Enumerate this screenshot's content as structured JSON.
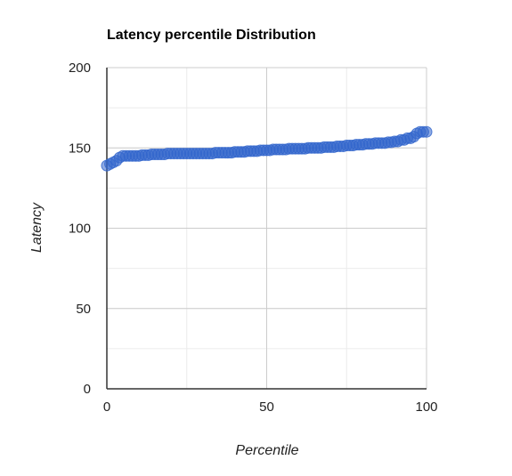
{
  "chart_data": {
    "type": "scatter",
    "title": "Latency percentile Distribution",
    "xlabel": "Percentile",
    "ylabel": "Latency",
    "xlim": [
      0,
      100
    ],
    "ylim": [
      0,
      200
    ],
    "x_ticks": [
      0,
      50,
      100
    ],
    "x_tick_labels": [
      "0",
      "50",
      "100"
    ],
    "y_ticks": [
      0,
      50,
      100,
      150,
      200
    ],
    "y_tick_labels": [
      "0",
      "50",
      "100",
      "150",
      "200"
    ],
    "grid": true,
    "legend": "none",
    "series_color": "#3366cc",
    "series": [
      {
        "x": [
          0,
          1,
          2,
          3,
          4,
          5,
          6,
          7,
          8,
          9,
          10,
          11,
          12,
          13,
          14,
          15,
          16,
          17,
          18,
          19,
          20,
          21,
          22,
          23,
          24,
          25,
          26,
          27,
          28,
          29,
          30,
          31,
          32,
          33,
          34,
          35,
          36,
          37,
          38,
          39,
          40,
          41,
          42,
          43,
          44,
          45,
          46,
          47,
          48,
          49,
          50,
          51,
          52,
          53,
          54,
          55,
          56,
          57,
          58,
          59,
          60,
          61,
          62,
          63,
          64,
          65,
          66,
          67,
          68,
          69,
          70,
          71,
          72,
          73,
          74,
          75,
          76,
          77,
          78,
          79,
          80,
          81,
          82,
          83,
          84,
          85,
          86,
          87,
          88,
          89,
          90,
          91,
          92,
          93,
          94,
          95,
          96,
          97,
          98,
          99,
          100
        ],
        "y": [
          139,
          140,
          141,
          142,
          144,
          145,
          145,
          145,
          145,
          145,
          145,
          145.5,
          145.5,
          145.5,
          146,
          146,
          146,
          146,
          146,
          146.5,
          146.5,
          146.5,
          146.5,
          146.5,
          146.5,
          146.5,
          146.5,
          146.5,
          146.5,
          146.5,
          146.5,
          146.5,
          146.5,
          146.5,
          147,
          147,
          147,
          147,
          147,
          147,
          147.5,
          147.5,
          147.5,
          147.5,
          148,
          148,
          148,
          148,
          148.5,
          148.5,
          148.5,
          148.5,
          149,
          149,
          149,
          149,
          149,
          149.5,
          149.5,
          149.5,
          149.5,
          149.5,
          149.5,
          150,
          150,
          150,
          150,
          150,
          150.5,
          150.5,
          150.5,
          150.5,
          151,
          151,
          151,
          151.5,
          151.5,
          151.5,
          152,
          152,
          152,
          152.5,
          152.5,
          152.5,
          153,
          153,
          153,
          153,
          153.5,
          153.5,
          154,
          154,
          155,
          155,
          156,
          156,
          157,
          159,
          160,
          160,
          160
        ]
      }
    ]
  }
}
